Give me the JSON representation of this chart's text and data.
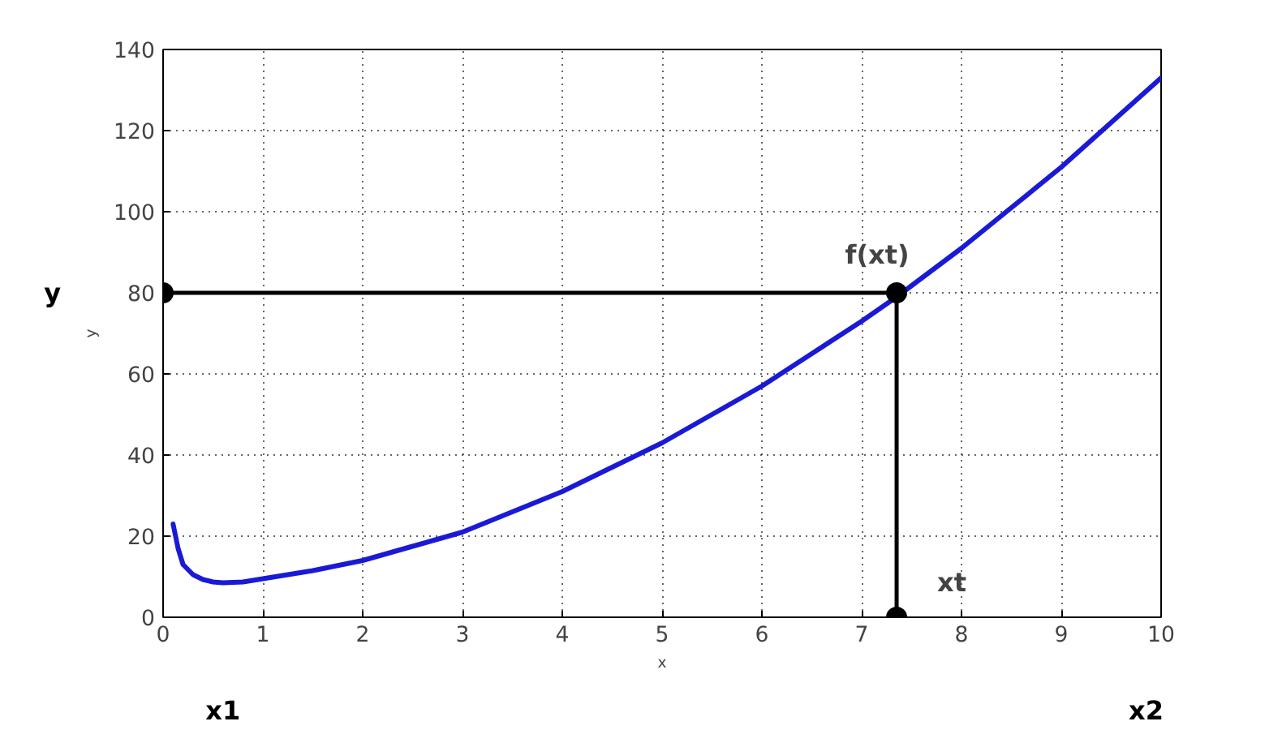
{
  "chart_data": {
    "type": "line",
    "xlabel": "x",
    "ylabel": "y",
    "xlim": [
      0,
      10
    ],
    "ylim": [
      0,
      140
    ],
    "xticks": [
      0,
      1,
      2,
      3,
      4,
      5,
      6,
      7,
      8,
      9,
      10
    ],
    "yticks": [
      0,
      20,
      40,
      60,
      80,
      100,
      120,
      140
    ],
    "grid": true,
    "series": [
      {
        "color": "#1a1ad6",
        "x": [
          0.1,
          0.15,
          0.2,
          0.3,
          0.4,
          0.5,
          0.6,
          0.8,
          1,
          1.5,
          2,
          2.5,
          3,
          3.5,
          4,
          4.5,
          5,
          5.5,
          6,
          6.5,
          7,
          7.35,
          8,
          8.5,
          9,
          9.5,
          10
        ],
        "values": [
          23,
          17,
          13,
          10.5,
          9.3,
          8.7,
          8.5,
          8.7,
          9.5,
          11.5,
          14,
          17.5,
          21,
          26,
          31,
          37,
          43,
          50,
          57,
          65,
          73,
          79,
          91,
          101,
          111,
          122,
          133
        ]
      },
      {
        "color": "#000000",
        "x": [
          0,
          7.35
        ],
        "values": [
          80,
          80
        ]
      },
      {
        "color": "#000000",
        "x": [
          7.35,
          7.35
        ],
        "values": [
          80,
          0
        ]
      },
      {
        "type": "scatter",
        "color": "#000000",
        "marker": "circle",
        "x": [
          0,
          7.35,
          7.35
        ],
        "values": [
          80,
          80,
          0
        ]
      }
    ],
    "annotations": [
      "y",
      {
        "text": "f(xt)",
        "x": 7.35,
        "y": 80
      },
      {
        "text": "xt",
        "x": 7.35,
        "y": 0
      },
      "x1",
      "x2"
    ]
  }
}
